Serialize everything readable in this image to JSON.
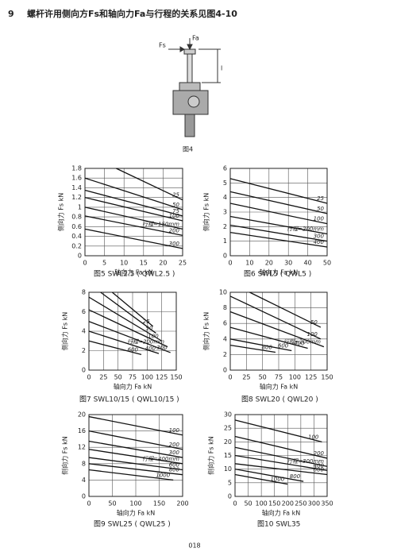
{
  "heading": {
    "number": "9",
    "text": "螺杆许用侧向方Fs和轴向力Fa与行程的关系见图4-10"
  },
  "figure": {
    "fs_label": "Fs",
    "fa_label": "Fa",
    "length_label": "l",
    "caption": "图4"
  },
  "page_number": "018",
  "chart_data": [
    {
      "type": "line",
      "caption": "图5  SWL2.5 ( QWL2.5 )",
      "xlabel": "轴向力 Fa kN",
      "ylabel": "侧向力 Fs kN",
      "xlim": [
        0,
        25
      ],
      "ylim": [
        0,
        1.8
      ],
      "xticks": [
        0,
        5,
        10,
        15,
        20,
        25
      ],
      "yticks": [
        0,
        0.2,
        0.4,
        0.6,
        0.8,
        1,
        1.2,
        1.4,
        1.6,
        1.8
      ],
      "grid": true,
      "series": [
        {
          "name": "25",
          "color": "#111",
          "x": [
            8,
            25
          ],
          "values": [
            1.8,
            1.15
          ]
        },
        {
          "name": "50",
          "color": "#111",
          "x": [
            0,
            25
          ],
          "values": [
            1.6,
            0.95
          ]
        },
        {
          "name": "75",
          "color": "#111",
          "x": [
            0,
            25
          ],
          "values": [
            1.35,
            0.82
          ]
        },
        {
          "name": "100",
          "color": "#111",
          "x": [
            0,
            25
          ],
          "values": [
            1.2,
            0.72
          ]
        },
        {
          "name": "行程=150mm",
          "color": "#111",
          "x": [
            0,
            25
          ],
          "values": [
            1.0,
            0.55
          ]
        },
        {
          "name": "200",
          "color": "#111",
          "x": [
            0,
            25
          ],
          "values": [
            0.82,
            0.42
          ]
        },
        {
          "name": "300",
          "color": "#111",
          "x": [
            0,
            25
          ],
          "values": [
            0.55,
            0.15
          ]
        }
      ]
    },
    {
      "type": "line",
      "caption": "图6  SWL5 ( QWL5 )",
      "xlabel": "轴向力 Fa kN",
      "ylabel": "侧向力 Fs kN",
      "xlim": [
        0,
        50
      ],
      "ylim": [
        0,
        6
      ],
      "xticks": [
        0,
        10,
        20,
        30,
        40,
        50
      ],
      "yticks": [
        0,
        1,
        2,
        3,
        4,
        5,
        6
      ],
      "grid": true,
      "series": [
        {
          "name": "25",
          "color": "#111",
          "x": [
            0,
            50
          ],
          "values": [
            5.3,
            3.6
          ]
        },
        {
          "name": "50",
          "color": "#111",
          "x": [
            0,
            50
          ],
          "values": [
            4.4,
            2.9
          ]
        },
        {
          "name": "100",
          "color": "#111",
          "x": [
            0,
            50
          ],
          "values": [
            3.6,
            2.2
          ]
        },
        {
          "name": "行程=200mm",
          "color": "#111",
          "x": [
            0,
            50
          ],
          "values": [
            2.7,
            1.5
          ]
        },
        {
          "name": "300",
          "color": "#111",
          "x": [
            0,
            50
          ],
          "values": [
            2.1,
            1.0
          ]
        },
        {
          "name": "400",
          "color": "#111",
          "x": [
            0,
            50
          ],
          "values": [
            1.6,
            0.6
          ]
        }
      ]
    },
    {
      "type": "line",
      "caption": "图7  SWL10/15 ( QWL10/15 )",
      "xlabel": "轴向力 Fa kN",
      "ylabel": "侧向力 Fs kN",
      "xlim": [
        0,
        150
      ],
      "ylim": [
        0,
        8
      ],
      "xticks": [
        0,
        25,
        50,
        75,
        100,
        125,
        150
      ],
      "yticks": [
        0,
        2,
        4,
        6,
        8
      ],
      "grid": true,
      "series": [
        {
          "name": "25",
          "color": "#111",
          "x": [
            40,
            110
          ],
          "values": [
            8,
            4.5
          ]
        },
        {
          "name": "50",
          "color": "#111",
          "x": [
            20,
            115
          ],
          "values": [
            8,
            3.8
          ]
        },
        {
          "name": "100",
          "color": "#111",
          "x": [
            0,
            125
          ],
          "values": [
            7.5,
            3.0
          ]
        },
        {
          "name": "行程=200mm",
          "color": "#111",
          "x": [
            0,
            135
          ],
          "values": [
            6.2,
            2.4
          ]
        },
        {
          "name": "300",
          "color": "#111",
          "x": [
            0,
            140
          ],
          "values": [
            5.0,
            1.8
          ]
        },
        {
          "name": "400",
          "color": "#111",
          "x": [
            0,
            120
          ],
          "values": [
            4.0,
            1.7
          ]
        },
        {
          "name": "600",
          "color": "#111",
          "x": [
            0,
            90
          ],
          "values": [
            3.0,
            1.6
          ]
        }
      ]
    },
    {
      "type": "line",
      "caption": "图8  SWL20 ( QWL20 )",
      "xlabel": "轴向力 Fa kN",
      "ylabel": "侧向力 Fs kN",
      "xlim": [
        0,
        150
      ],
      "ylim": [
        0,
        10
      ],
      "xticks": [
        0,
        25,
        50,
        75,
        100,
        125,
        150
      ],
      "yticks": [
        0,
        2,
        4,
        6,
        8,
        10
      ],
      "grid": true,
      "series": [
        {
          "name": "50",
          "color": "#111",
          "x": [
            30,
            140
          ],
          "values": [
            10,
            5.5
          ]
        },
        {
          "name": "100",
          "color": "#111",
          "x": [
            0,
            140
          ],
          "values": [
            9.5,
            4.0
          ]
        },
        {
          "name": "行程=200mm",
          "color": "#111",
          "x": [
            0,
            145
          ],
          "values": [
            7.5,
            3.0
          ]
        },
        {
          "name": "400",
          "color": "#111",
          "x": [
            0,
            120
          ],
          "values": [
            5.5,
            2.8
          ]
        },
        {
          "name": "600",
          "color": "#111",
          "x": [
            0,
            95
          ],
          "values": [
            4.0,
            2.5
          ]
        },
        {
          "name": "800",
          "color": "#111",
          "x": [
            0,
            70
          ],
          "values": [
            3.2,
            2.3
          ]
        }
      ]
    },
    {
      "type": "line",
      "caption": "图9  SWL25 ( QWL25 )",
      "xlabel": "轴向力 Fa kN",
      "ylabel": "侧向力 Fs kN",
      "xlim": [
        0,
        200
      ],
      "ylim": [
        0,
        20
      ],
      "xticks": [
        0,
        50,
        100,
        150,
        200
      ],
      "yticks": [
        0,
        4,
        8,
        12,
        16,
        20
      ],
      "grid": true,
      "series": [
        {
          "name": "100",
          "color": "#111",
          "x": [
            0,
            200
          ],
          "values": [
            19.5,
            15
          ]
        },
        {
          "name": "200",
          "color": "#111",
          "x": [
            0,
            200
          ],
          "values": [
            16,
            11.5
          ]
        },
        {
          "name": "300",
          "color": "#111",
          "x": [
            0,
            200
          ],
          "values": [
            13.5,
            9.5
          ]
        },
        {
          "name": "行程=400mm",
          "color": "#111",
          "x": [
            0,
            200
          ],
          "values": [
            11.5,
            8.0
          ]
        },
        {
          "name": "600",
          "color": "#111",
          "x": [
            0,
            200
          ],
          "values": [
            9.5,
            6.5
          ]
        },
        {
          "name": "800",
          "color": "#111",
          "x": [
            0,
            200
          ],
          "values": [
            8,
            5.3
          ]
        },
        {
          "name": "1000",
          "color": "#111",
          "x": [
            0,
            180
          ],
          "values": [
            6.5,
            4.0
          ]
        }
      ]
    },
    {
      "type": "line",
      "caption": "图10  SWL35",
      "xlabel": "轴向力 Fa kN",
      "ylabel": "侧向力 Fs kN",
      "xlim": [
        0,
        350
      ],
      "ylim": [
        0,
        30
      ],
      "xticks": [
        0,
        50,
        100,
        150,
        200,
        250,
        300,
        350
      ],
      "yticks": [
        0,
        5,
        10,
        15,
        20,
        25,
        30
      ],
      "grid": true,
      "series": [
        {
          "name": "100",
          "color": "#111",
          "x": [
            0,
            330
          ],
          "values": [
            28,
            20
          ]
        },
        {
          "name": "200",
          "color": "#111",
          "x": [
            0,
            350
          ],
          "values": [
            22,
            14
          ]
        },
        {
          "name": "行程=300mm",
          "color": "#111",
          "x": [
            0,
            350
          ],
          "values": [
            18,
            11
          ]
        },
        {
          "name": "400",
          "color": "#111",
          "x": [
            0,
            350
          ],
          "values": [
            15,
            9.5
          ]
        },
        {
          "name": "600",
          "color": "#111",
          "x": [
            0,
            350
          ],
          "values": [
            12,
            8
          ]
        },
        {
          "name": "800",
          "color": "#111",
          "x": [
            0,
            260
          ],
          "values": [
            10,
            5.5
          ]
        },
        {
          "name": "1000",
          "color": "#111",
          "x": [
            0,
            200
          ],
          "values": [
            8,
            4.5
          ]
        }
      ]
    }
  ]
}
